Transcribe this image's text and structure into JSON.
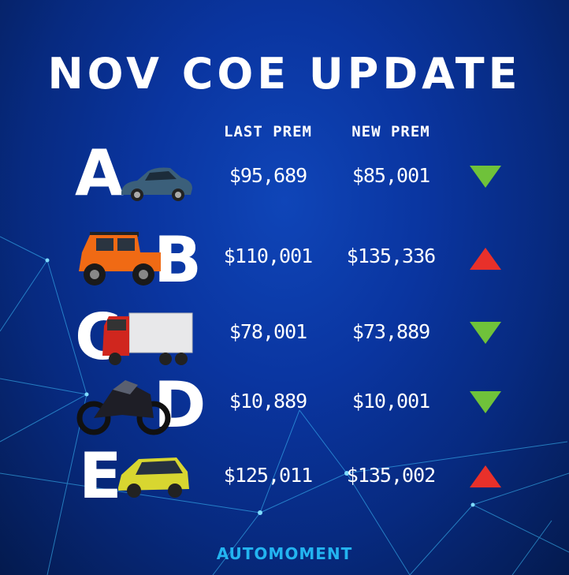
{
  "title": "NOV COE UPDATE",
  "columns": {
    "last": "LAST PREM",
    "new": "NEW PREM"
  },
  "colors": {
    "down": "#6fc23a",
    "up": "#e8302a",
    "logo": "#23b4f0"
  },
  "rows": [
    {
      "category": "A",
      "vehicle": "sedan",
      "last": "$95,689",
      "new": "$85,001",
      "trend": "down"
    },
    {
      "category": "B",
      "vehicle": "suv-jeep",
      "last": "$110,001",
      "new": "$135,336",
      "trend": "up"
    },
    {
      "category": "C",
      "vehicle": "truck",
      "last": "$78,001",
      "new": "$73,889",
      "trend": "down"
    },
    {
      "category": "D",
      "vehicle": "motorcycle",
      "last": "$10,889",
      "new": "$10,001",
      "trend": "down"
    },
    {
      "category": "E",
      "vehicle": "mpv",
      "last": "$125,011",
      "new": "$135,002",
      "trend": "up"
    }
  ],
  "logo": "AUTOMOMENT"
}
